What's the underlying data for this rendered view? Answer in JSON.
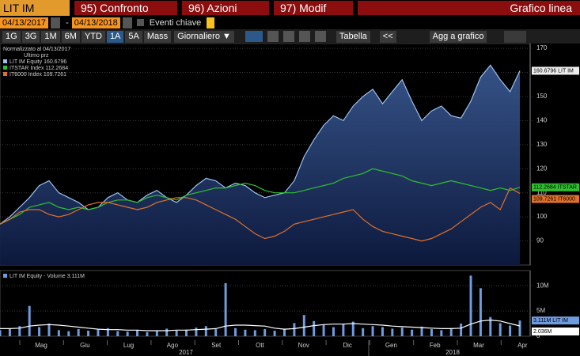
{
  "header": {
    "ticker": "LIT IM Equity",
    "tabs": [
      "95) Confronto",
      "96) Azioni",
      "97) Modif"
    ],
    "chart_kind": "Grafico linea"
  },
  "controls": {
    "start_date": "04/13/2017",
    "separator": "-",
    "end_date": "04/13/2018",
    "events": "Eventi chiave",
    "periods": [
      "1G",
      "3G",
      "1M",
      "6M",
      "YTD",
      "1A",
      "5A",
      "Mass"
    ],
    "active_period": 5,
    "frequency": "Giornaliero ▼",
    "table": "Tabella",
    "collapse": "<<",
    "add": "Agg a grafico"
  },
  "chart_data": [
    {
      "type": "line",
      "note": "Normalizzato al 04/13/2017",
      "subnote": "Ultimo prz",
      "grid": true,
      "ylim": [
        80,
        172
      ],
      "yticks": [
        90,
        100,
        110,
        120,
        130,
        140,
        150,
        160,
        170
      ],
      "month_labels": [
        "Mag",
        "Giu",
        "Lug",
        "Ago",
        "Set",
        "Ott",
        "Nov",
        "Dic",
        "Gen",
        "Feb",
        "Mar",
        "Apr"
      ],
      "year_labels": [
        "2017",
        "2018"
      ],
      "series": [
        {
          "name": "LIT IM Equity",
          "color": "#9cc3f0",
          "area": true,
          "last_label": "160.6796",
          "tag": "160.6796 LIT IM",
          "values": [
            97,
            100,
            104,
            108,
            113,
            115,
            110,
            108,
            106,
            103,
            104,
            108,
            110,
            107,
            106,
            109,
            111,
            108,
            106,
            109,
            113,
            116,
            115,
            112,
            114,
            113,
            110,
            108,
            109,
            110,
            115,
            125,
            132,
            138,
            142,
            140,
            146,
            150,
            153,
            147,
            152,
            157,
            148,
            140,
            144,
            146,
            142,
            141,
            148,
            158,
            163,
            157,
            152,
            160.6796
          ]
        },
        {
          "name": "ITSTAR Index",
          "color": "#2fc02f",
          "area": false,
          "last_label": "112.2684",
          "tag": "112.2684 ITSTAR",
          "values": [
            97,
            99,
            101,
            104,
            105,
            106,
            104,
            103,
            104,
            103,
            104,
            106,
            107,
            107,
            106,
            108,
            109,
            108,
            107,
            109,
            110,
            111,
            112,
            112,
            113,
            114,
            113,
            111,
            110,
            110,
            110,
            111,
            112,
            113,
            114,
            116,
            117,
            118,
            120,
            119,
            118,
            117,
            115,
            114,
            113,
            114,
            115,
            114,
            113,
            112,
            111,
            112,
            111,
            112.2684
          ]
        },
        {
          "name": "IT6000 Index",
          "color": "#e0702a",
          "area": false,
          "last_label": "109.7261",
          "tag": "109.7261 IT6000",
          "values": [
            97,
            99,
            102,
            103,
            103,
            101,
            100,
            101,
            103,
            105,
            106,
            106,
            105,
            104,
            103,
            104,
            106,
            107,
            108,
            108,
            107,
            105,
            103,
            101,
            99,
            96,
            93,
            91,
            92,
            94,
            97,
            98,
            99,
            100,
            101,
            102,
            103,
            99,
            96,
            94,
            93,
            92,
            91,
            90,
            91,
            93,
            95,
            98,
            101,
            104,
            106,
            103,
            112,
            109.7261
          ]
        }
      ]
    },
    {
      "type": "bar",
      "title": "LIT IM Equity - Volume 3.111M",
      "ylim": [
        0,
        13000000
      ],
      "yticks": [
        0,
        {
          "value": 5000000,
          "label": "5M"
        },
        {
          "value": 10000000,
          "label": "10M"
        }
      ],
      "series": [
        {
          "type": "bar",
          "color": "#6f9be0",
          "tag": "3.111M LIT IM",
          "values": [
            1200000,
            1500000,
            2000000,
            6000000,
            1800000,
            2500000,
            1200000,
            1000000,
            1400000,
            1100000,
            1300000,
            1600000,
            1000000,
            900000,
            1200000,
            800000,
            1000000,
            1500000,
            1100000,
            1300000,
            1700000,
            2000000,
            1400000,
            10500000,
            1600000,
            1300000,
            1200000,
            1400000,
            1100000,
            1500000,
            2600000,
            4200000,
            3000000,
            2200000,
            1800000,
            2400000,
            2900000,
            1600000,
            2000000,
            1800000,
            1500000,
            1700000,
            1300000,
            1900000,
            1400000,
            1200000,
            1600000,
            2500000,
            12000000,
            9500000,
            3800000,
            2600000,
            2100000,
            3111000
          ]
        },
        {
          "type": "line",
          "color": "#ffffff",
          "tag": "2.036M",
          "values": [
            1500000,
            1500000,
            1600000,
            2000000,
            2200000,
            2300000,
            2200000,
            2000000,
            1800000,
            1600000,
            1400000,
            1300000,
            1300000,
            1200000,
            1200000,
            1100000,
            1100000,
            1100000,
            1200000,
            1200000,
            1300000,
            1400000,
            1500000,
            2000000,
            2200000,
            2200000,
            2100000,
            2000000,
            1600000,
            1400000,
            1500000,
            1800000,
            2100000,
            2300000,
            2400000,
            2400000,
            2500000,
            2400000,
            2300000,
            2200000,
            2000000,
            1900000,
            1800000,
            1700000,
            1600000,
            1500000,
            1500000,
            1600000,
            2400000,
            3000000,
            3200000,
            3000000,
            2500000,
            2036000
          ]
        }
      ]
    }
  ]
}
